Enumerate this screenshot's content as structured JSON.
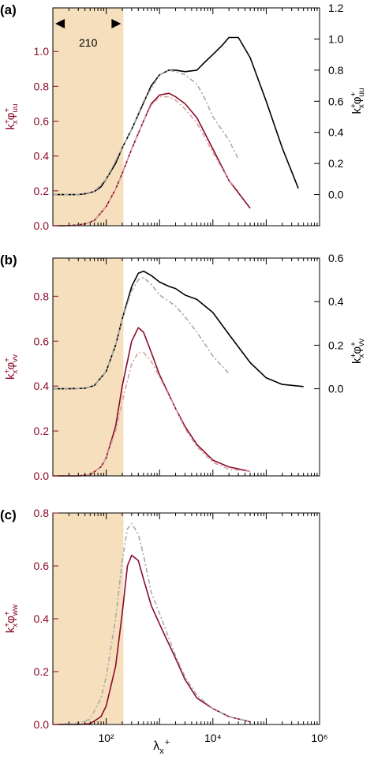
{
  "colors": {
    "shade": "#f5dfbc",
    "primary": "#8b0a2a",
    "primary_dashed": "#d9a1a4",
    "secondary": "#000000",
    "secondary_dashed": "#a9a9a9",
    "left_axis": "#8b0a2a",
    "right_axis": "#000000"
  },
  "annotation": {
    "text": "210"
  },
  "xaxis": {
    "label": "λx+",
    "scale": "log",
    "lim": [
      10,
      1000000
    ],
    "ticks": [
      {
        "value": 100,
        "label": "10²"
      },
      {
        "value": 10000,
        "label": "10⁴"
      },
      {
        "value": 1000000,
        "label": "10⁶"
      }
    ]
  },
  "chart_data": [
    {
      "type": "line",
      "panel_label": "(a)",
      "shade_range_x": [
        10,
        210
      ],
      "left_axis": {
        "label": "kx+φuu+",
        "lim": [
          0,
          1.25
        ],
        "ticks": [
          "0.0",
          "0.2",
          "0.4",
          "0.6",
          "0.8",
          "1.0"
        ],
        "tick_values": [
          0,
          0.2,
          0.4,
          0.6,
          0.8,
          1.0
        ]
      },
      "right_axis": {
        "label": "kx+φuu+",
        "lim": [
          -0.2,
          1.2
        ],
        "ticks": [
          "0.0",
          "0.2",
          "0.4",
          "0.6",
          "0.8",
          "1.0",
          "1.2"
        ],
        "tick_values": [
          0,
          0.2,
          0.4,
          0.6,
          0.8,
          1.0,
          1.2
        ]
      },
      "series": [
        {
          "axis": "right",
          "style": "solid",
          "color_key": "secondary",
          "x": [
            10,
            20,
            30,
            40,
            60,
            80,
            100,
            150,
            200,
            300,
            500,
            700,
            1000,
            1500,
            2000,
            3000,
            5000,
            7000,
            10000,
            15000,
            20000,
            30000,
            50000,
            100000,
            200000,
            400000
          ],
          "y": [
            0,
            0,
            0,
            0.005,
            0.02,
            0.05,
            0.1,
            0.2,
            0.3,
            0.42,
            0.59,
            0.7,
            0.77,
            0.8,
            0.8,
            0.79,
            0.8,
            0.85,
            0.9,
            0.96,
            1.01,
            1.01,
            0.88,
            0.6,
            0.3,
            0.04
          ]
        },
        {
          "axis": "right",
          "style": "dashed",
          "color_key": "secondary_dashed",
          "x": [
            10,
            30,
            60,
            100,
            200,
            300,
            500,
            1000,
            1500,
            2000,
            3000,
            5000,
            7000,
            10000,
            20000,
            30000
          ],
          "y": [
            0,
            0,
            0.02,
            0.1,
            0.3,
            0.42,
            0.6,
            0.77,
            0.8,
            0.79,
            0.77,
            0.71,
            0.62,
            0.5,
            0.35,
            0.23
          ]
        },
        {
          "axis": "left",
          "style": "solid",
          "color_key": "primary",
          "x": [
            10,
            20,
            40,
            60,
            100,
            150,
            200,
            300,
            500,
            700,
            1000,
            1500,
            2000,
            3000,
            5000,
            10000,
            20000,
            50000
          ],
          "y": [
            0,
            0,
            0.01,
            0.03,
            0.11,
            0.21,
            0.3,
            0.44,
            0.6,
            0.7,
            0.75,
            0.76,
            0.74,
            0.7,
            0.62,
            0.44,
            0.26,
            0.1
          ]
        },
        {
          "axis": "left",
          "style": "dashed",
          "color_key": "primary_dashed",
          "x": [
            10,
            20,
            40,
            60,
            100,
            150,
            200,
            300,
            500,
            700,
            1000,
            1500,
            2000,
            3000,
            5000,
            10000,
            20000,
            30000
          ],
          "y": [
            0,
            0,
            0.01,
            0.03,
            0.11,
            0.21,
            0.3,
            0.44,
            0.6,
            0.69,
            0.74,
            0.74,
            0.72,
            0.67,
            0.59,
            0.42,
            0.26,
            0.2
          ]
        }
      ]
    },
    {
      "type": "line",
      "panel_label": "(b)",
      "shade_range_x": [
        10,
        210
      ],
      "left_axis": {
        "label": "kx+φvv+",
        "lim": [
          0,
          0.97
        ],
        "ticks": [
          "0.0",
          "0.2",
          "0.4",
          "0.6",
          "0.8"
        ],
        "tick_values": [
          0,
          0.2,
          0.4,
          0.6,
          0.8
        ]
      },
      "right_axis": {
        "label": "kx+φvv+",
        "lim": [
          -0.4,
          0.6
        ],
        "ticks": [
          "0.0",
          "0.2",
          "0.4",
          "0.6"
        ],
        "tick_values": [
          0,
          0.2,
          0.4,
          0.6
        ]
      },
      "series": [
        {
          "axis": "right",
          "style": "solid",
          "color_key": "secondary",
          "x": [
            10,
            20,
            40,
            60,
            100,
            150,
            200,
            300,
            400,
            500,
            700,
            1000,
            1500,
            2000,
            3000,
            5000,
            10000,
            20000,
            50000,
            100000,
            200000,
            500000
          ],
          "y": [
            0,
            0,
            0.002,
            0.015,
            0.08,
            0.2,
            0.32,
            0.47,
            0.53,
            0.54,
            0.52,
            0.49,
            0.47,
            0.46,
            0.43,
            0.41,
            0.35,
            0.25,
            0.12,
            0.05,
            0.02,
            0.01
          ]
        },
        {
          "axis": "right",
          "style": "dashed",
          "color_key": "secondary_dashed",
          "x": [
            10,
            20,
            40,
            60,
            100,
            150,
            200,
            300,
            400,
            500,
            700,
            1000,
            2000,
            3000,
            5000,
            10000,
            20000
          ],
          "y": [
            0,
            0,
            0.002,
            0.015,
            0.08,
            0.2,
            0.32,
            0.45,
            0.5,
            0.51,
            0.48,
            0.43,
            0.38,
            0.33,
            0.26,
            0.15,
            0.07
          ]
        },
        {
          "axis": "left",
          "style": "solid",
          "color_key": "primary",
          "x": [
            10,
            30,
            50,
            80,
            100,
            150,
            200,
            300,
            400,
            500,
            700,
            1000,
            2000,
            3000,
            5000,
            10000,
            20000,
            50000
          ],
          "y": [
            0,
            0,
            0.005,
            0.04,
            0.08,
            0.22,
            0.4,
            0.6,
            0.66,
            0.64,
            0.55,
            0.45,
            0.3,
            0.22,
            0.14,
            0.07,
            0.04,
            0.02
          ]
        },
        {
          "axis": "left",
          "style": "dashed",
          "color_key": "primary_dashed",
          "x": [
            10,
            30,
            50,
            80,
            100,
            150,
            200,
            300,
            400,
            500,
            700,
            1000,
            2000,
            3000,
            5000,
            10000,
            20000,
            50000
          ],
          "y": [
            0,
            0,
            0.005,
            0.04,
            0.08,
            0.2,
            0.33,
            0.5,
            0.55,
            0.55,
            0.51,
            0.44,
            0.3,
            0.21,
            0.13,
            0.06,
            0.03,
            0.02
          ]
        }
      ]
    },
    {
      "type": "line",
      "panel_label": "(c)",
      "shade_range_x": [
        10,
        210
      ],
      "left_axis": {
        "label": "kx+φww+",
        "lim": [
          0,
          0.8
        ],
        "ticks": [
          "0.0",
          "0.2",
          "0.4",
          "0.6",
          "0.8"
        ],
        "tick_values": [
          0,
          0.2,
          0.4,
          0.6,
          0.8
        ]
      },
      "right_axis": null,
      "series": [
        {
          "axis": "left",
          "style": "solid",
          "color_key": "primary",
          "x": [
            10,
            30,
            50,
            80,
            100,
            150,
            200,
            250,
            300,
            400,
            500,
            700,
            1000,
            2000,
            3000,
            5000,
            10000,
            20000,
            50000
          ],
          "y": [
            0,
            0,
            0.003,
            0.03,
            0.07,
            0.22,
            0.42,
            0.6,
            0.64,
            0.62,
            0.55,
            0.45,
            0.38,
            0.25,
            0.17,
            0.1,
            0.06,
            0.03,
            0.01
          ]
        },
        {
          "axis": "left",
          "style": "dashed",
          "color_key": "secondary_dashed",
          "x": [
            10,
            30,
            50,
            80,
            100,
            150,
            200,
            250,
            300,
            400,
            500,
            700,
            1000,
            2000,
            3000,
            5000,
            10000,
            20000,
            50000
          ],
          "y": [
            0,
            0.005,
            0.02,
            0.1,
            0.18,
            0.4,
            0.62,
            0.74,
            0.76,
            0.72,
            0.64,
            0.5,
            0.42,
            0.26,
            0.18,
            0.11,
            0.06,
            0.03,
            0.01
          ]
        }
      ]
    }
  ]
}
